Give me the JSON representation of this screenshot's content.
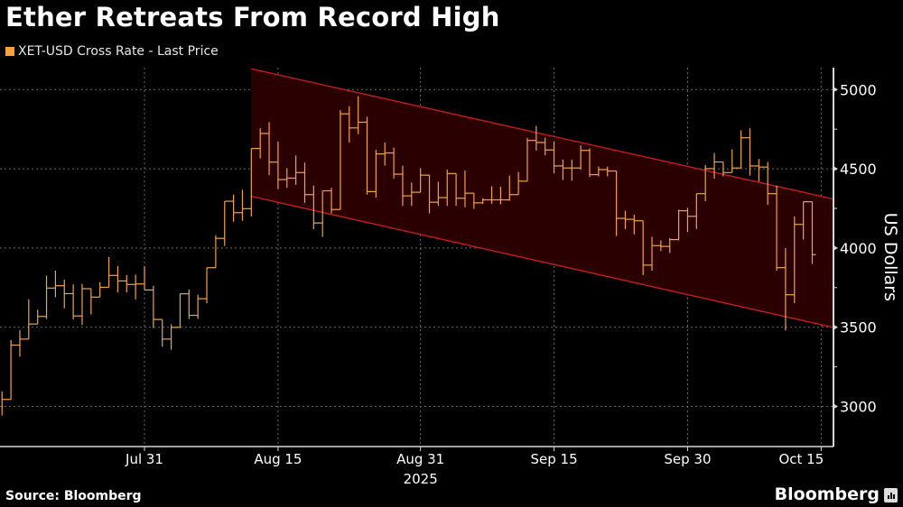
{
  "title": "Ether Retreats From Record High",
  "legend": {
    "label": "XET-USD Cross Rate - Last Price",
    "color": "#f4a23c"
  },
  "footer": {
    "source": "Source: Bloomberg",
    "brand": "Bloomberg",
    "brand_icon": "bloomberg-chart-icon"
  },
  "colors": {
    "bars": "#f0a24a",
    "channel_fill": "#2a0000",
    "channel_line": "#d01c1c",
    "grid": "#6a6a6a",
    "axis": "#d8d8d8"
  },
  "chart_data": {
    "type": "bar",
    "style": "high-low-close step bars",
    "title": "Ether Retreats From Record High",
    "ylabel": "US Dollars",
    "ylim": [
      2760,
      5140
    ],
    "yticks": [
      3000,
      3500,
      4000,
      4500,
      5000
    ],
    "xlim": [
      "2025-07-15",
      "2025-10-16"
    ],
    "xticks": [
      {
        "date": "2025-07-31",
        "label": "Jul 31"
      },
      {
        "date": "2025-08-15",
        "label": "Aug 15"
      },
      {
        "date": "2025-08-31",
        "label": "Aug 31"
      },
      {
        "date": "2025-09-15",
        "label": "Sep 15"
      },
      {
        "date": "2025-09-30",
        "label": "Sep 30"
      },
      {
        "date": "2025-10-15",
        "label": "Oct 15"
      }
    ],
    "year_label": "2025",
    "grid": true,
    "legend_position": "top-left",
    "channel": {
      "upper": [
        {
          "date": "2025-08-12",
          "value": 5131
        },
        {
          "date": "2025-10-16",
          "value": 4314
        }
      ],
      "lower": [
        {
          "date": "2025-08-12",
          "value": 4326
        },
        {
          "date": "2025-10-16",
          "value": 3503
        }
      ]
    },
    "start_date": "2025-07-15",
    "bars": [
      [
        3095,
        2943,
        3044
      ],
      [
        3419,
        3044,
        3387
      ],
      [
        3482,
        3314,
        3425
      ],
      [
        3676,
        3425,
        3520
      ],
      [
        3610,
        3520,
        3568
      ],
      [
        3825,
        3552,
        3747
      ],
      [
        3857,
        3690,
        3762
      ],
      [
        3800,
        3619,
        3712
      ],
      [
        3770,
        3549,
        3571
      ],
      [
        3773,
        3514,
        3743
      ],
      [
        3743,
        3581,
        3690
      ],
      [
        3785,
        3690,
        3752
      ],
      [
        3943,
        3752,
        3827
      ],
      [
        3886,
        3720,
        3792
      ],
      [
        3829,
        3720,
        3770
      ],
      [
        3832,
        3676,
        3773
      ],
      [
        3886,
        3735,
        3735
      ],
      [
        3762,
        3495,
        3549
      ],
      [
        3549,
        3377,
        3425
      ],
      [
        3518,
        3358,
        3499
      ],
      [
        3711,
        3495,
        3711
      ],
      [
        3739,
        3552,
        3575
      ],
      [
        3705,
        3552,
        3680
      ],
      [
        3876,
        3651,
        3876
      ],
      [
        4080,
        3876,
        4061
      ],
      [
        4295,
        4013,
        4295
      ],
      [
        4337,
        4166,
        4223
      ],
      [
        4368,
        4172,
        4248
      ],
      [
        4628,
        4199,
        4628
      ],
      [
        4756,
        4565,
        4723
      ],
      [
        4794,
        4460,
        4542
      ],
      [
        4672,
        4371,
        4432
      ],
      [
        4504,
        4380,
        4441
      ],
      [
        4584,
        4399,
        4476
      ],
      [
        4539,
        4285,
        4337
      ],
      [
        4394,
        4119,
        4158
      ],
      [
        4361,
        4070,
        4361
      ],
      [
        4380,
        4218,
        4243
      ],
      [
        4870,
        4243,
        4847
      ],
      [
        4895,
        4666,
        4758
      ],
      [
        4958,
        4718,
        4794
      ],
      [
        4828,
        4337,
        4356
      ],
      [
        4619,
        4318,
        4594
      ],
      [
        4666,
        4520,
        4600
      ],
      [
        4634,
        4438,
        4466
      ],
      [
        4520,
        4266,
        4329
      ],
      [
        4413,
        4266,
        4352
      ],
      [
        4504,
        4352,
        4460
      ],
      [
        4460,
        4218,
        4289
      ],
      [
        4418,
        4266,
        4318
      ],
      [
        4495,
        4266,
        4470
      ],
      [
        4470,
        4266,
        4314
      ],
      [
        4489,
        4257,
        4346
      ],
      [
        4346,
        4247,
        4285
      ],
      [
        4314,
        4279,
        4304
      ],
      [
        4390,
        4279,
        4304
      ],
      [
        4386,
        4276,
        4304
      ],
      [
        4457,
        4298,
        4337
      ],
      [
        4480,
        4337,
        4422
      ],
      [
        4695,
        4422,
        4679
      ],
      [
        4771,
        4615,
        4666
      ],
      [
        4696,
        4585,
        4619
      ],
      [
        4673,
        4471,
        4518
      ],
      [
        4558,
        4429,
        4505
      ],
      [
        4558,
        4425,
        4505
      ],
      [
        4648,
        4495,
        4616
      ],
      [
        4629,
        4448,
        4463
      ],
      [
        4514,
        4452,
        4495
      ],
      [
        4514,
        4452,
        4486
      ],
      [
        4486,
        4076,
        4187
      ],
      [
        4235,
        4120,
        4181
      ],
      [
        4210,
        4086,
        4172
      ],
      [
        4172,
        3829,
        3892
      ],
      [
        4071,
        3857,
        4015
      ],
      [
        4048,
        3981,
        4010
      ],
      [
        4063,
        3968,
        4053
      ],
      [
        4242,
        4048,
        4235
      ],
      [
        4254,
        4101,
        4200
      ],
      [
        4343,
        4120,
        4343
      ],
      [
        4524,
        4295,
        4501
      ],
      [
        4600,
        4438,
        4543
      ],
      [
        4543,
        4452,
        4476
      ],
      [
        4623,
        4476,
        4505
      ],
      [
        4743,
        4505,
        4696
      ],
      [
        4756,
        4457,
        4518
      ],
      [
        4562,
        4419,
        4511
      ],
      [
        4543,
        4273,
        4343
      ],
      [
        4394,
        3857,
        3876
      ],
      [
        4000,
        3480,
        3705
      ],
      [
        4200,
        3652,
        4149
      ],
      [
        4292,
        4053,
        4292
      ],
      [
        4292,
        3899,
        3958
      ]
    ],
    "bar_fields": [
      "high",
      "low",
      "close"
    ]
  }
}
